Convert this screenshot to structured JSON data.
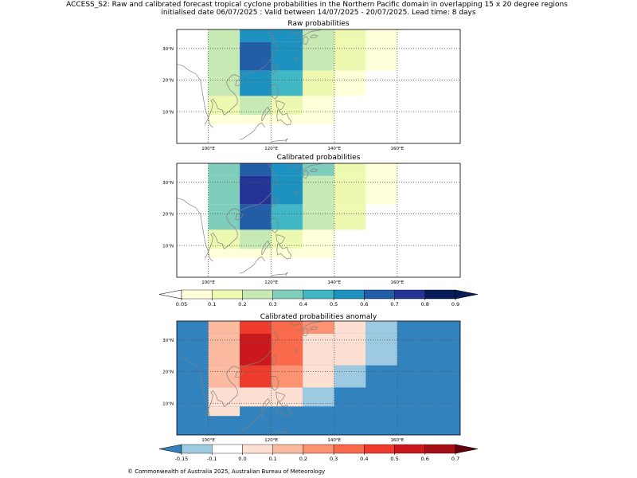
{
  "title_line1": "ACCESS_S2: Raw and calibrated forecast tropical cyclone probabilities in the Northern Pacific domain in overlapping 15 x 20 degree regions",
  "title_line2": "initialised date 06/07/2025 :  Valid between 14/07/2025 - 20/07/2025. Lead time: 8 days",
  "footer": "© Commonwealth of Australia 2025, Australian Bureau of Meteorology",
  "colors": {
    "coast": "#808080",
    "frame": "#000000",
    "grid": "#555555"
  },
  "chart_data": [
    {
      "type": "heatmap",
      "title": "Raw probabilities",
      "xlim": [
        90,
        180
      ],
      "ylim": [
        0,
        36
      ],
      "xticks": [
        {
          "value": 100,
          "label": "100°E"
        },
        {
          "value": 120,
          "label": "120°E"
        },
        {
          "value": 140,
          "label": "140°E"
        },
        {
          "value": 160,
          "label": "160°E"
        }
      ],
      "yticks": [
        {
          "value": 10,
          "label": "10°N"
        },
        {
          "value": 20,
          "label": "20°N"
        },
        {
          "value": 30,
          "label": "30°N"
        }
      ],
      "grid": true,
      "cells": [
        {
          "lon": [
            100,
            110
          ],
          "lat": [
            32,
            36
          ],
          "value": 0.25
        },
        {
          "lon": [
            110,
            120
          ],
          "lat": [
            32,
            36
          ],
          "value": 0.55
        },
        {
          "lon": [
            120,
            130
          ],
          "lat": [
            32,
            36
          ],
          "value": 0.55
        },
        {
          "lon": [
            130,
            140
          ],
          "lat": [
            32,
            36
          ],
          "value": 0.25
        },
        {
          "lon": [
            140,
            150
          ],
          "lat": [
            32,
            36
          ],
          "value": 0.15
        },
        {
          "lon": [
            150,
            160
          ],
          "lat": [
            32,
            36
          ],
          "value": 0.08
        },
        {
          "lon": [
            100,
            110
          ],
          "lat": [
            23,
            32
          ],
          "value": 0.25
        },
        {
          "lon": [
            110,
            120
          ],
          "lat": [
            23,
            32
          ],
          "value": 0.65
        },
        {
          "lon": [
            120,
            130
          ],
          "lat": [
            23,
            32
          ],
          "value": 0.55
        },
        {
          "lon": [
            130,
            140
          ],
          "lat": [
            23,
            32
          ],
          "value": 0.25
        },
        {
          "lon": [
            140,
            150
          ],
          "lat": [
            23,
            32
          ],
          "value": 0.15
        },
        {
          "lon": [
            150,
            160
          ],
          "lat": [
            23,
            32
          ],
          "value": 0.08
        },
        {
          "lon": [
            100,
            110
          ],
          "lat": [
            15,
            23
          ],
          "value": 0.25
        },
        {
          "lon": [
            110,
            120
          ],
          "lat": [
            15,
            23
          ],
          "value": 0.55
        },
        {
          "lon": [
            120,
            130
          ],
          "lat": [
            15,
            23
          ],
          "value": 0.45
        },
        {
          "lon": [
            130,
            140
          ],
          "lat": [
            15,
            23
          ],
          "value": 0.15
        },
        {
          "lon": [
            140,
            150
          ],
          "lat": [
            15,
            23
          ],
          "value": 0.08
        },
        {
          "lon": [
            100,
            110
          ],
          "lat": [
            9,
            15
          ],
          "value": 0.15
        },
        {
          "lon": [
            110,
            120
          ],
          "lat": [
            9,
            15
          ],
          "value": 0.25
        },
        {
          "lon": [
            120,
            130
          ],
          "lat": [
            9,
            15
          ],
          "value": 0.15
        },
        {
          "lon": [
            130,
            140
          ],
          "lat": [
            9,
            15
          ],
          "value": 0.08
        },
        {
          "lon": [
            100,
            110
          ],
          "lat": [
            6,
            9
          ],
          "value": 0.08
        },
        {
          "lon": [
            110,
            120
          ],
          "lat": [
            6,
            9
          ],
          "value": 0.08
        },
        {
          "lon": [
            120,
            130
          ],
          "lat": [
            6,
            9
          ],
          "value": 0.08
        },
        {
          "lon": [
            130,
            140
          ],
          "lat": [
            6,
            9
          ],
          "value": 0.08
        }
      ]
    },
    {
      "type": "heatmap",
      "title": "Calibrated probabilities",
      "xlim": [
        90,
        180
      ],
      "ylim": [
        0,
        36
      ],
      "xticks": [
        {
          "value": 100,
          "label": "100°E"
        },
        {
          "value": 120,
          "label": "120°E"
        },
        {
          "value": 140,
          "label": "140°E"
        },
        {
          "value": 160,
          "label": "160°E"
        }
      ],
      "yticks": [
        {
          "value": 10,
          "label": "10°N"
        },
        {
          "value": 20,
          "label": "20°N"
        },
        {
          "value": 30,
          "label": "30°N"
        }
      ],
      "grid": true,
      "cells": [
        {
          "lon": [
            100,
            110
          ],
          "lat": [
            32,
            36
          ],
          "value": 0.35
        },
        {
          "lon": [
            110,
            120
          ],
          "lat": [
            32,
            36
          ],
          "value": 0.65
        },
        {
          "lon": [
            120,
            130
          ],
          "lat": [
            32,
            36
          ],
          "value": 0.55
        },
        {
          "lon": [
            130,
            140
          ],
          "lat": [
            32,
            36
          ],
          "value": 0.35
        },
        {
          "lon": [
            140,
            150
          ],
          "lat": [
            32,
            36
          ],
          "value": 0.15
        },
        {
          "lon": [
            150,
            160
          ],
          "lat": [
            32,
            36
          ],
          "value": 0.08
        },
        {
          "lon": [
            100,
            110
          ],
          "lat": [
            23,
            32
          ],
          "value": 0.35
        },
        {
          "lon": [
            110,
            120
          ],
          "lat": [
            23,
            32
          ],
          "value": 0.75
        },
        {
          "lon": [
            120,
            130
          ],
          "lat": [
            23,
            32
          ],
          "value": 0.55
        },
        {
          "lon": [
            130,
            140
          ],
          "lat": [
            23,
            32
          ],
          "value": 0.25
        },
        {
          "lon": [
            140,
            150
          ],
          "lat": [
            23,
            32
          ],
          "value": 0.15
        },
        {
          "lon": [
            150,
            160
          ],
          "lat": [
            23,
            32
          ],
          "value": 0.08
        },
        {
          "lon": [
            100,
            110
          ],
          "lat": [
            15,
            23
          ],
          "value": 0.35
        },
        {
          "lon": [
            110,
            120
          ],
          "lat": [
            15,
            23
          ],
          "value": 0.65
        },
        {
          "lon": [
            120,
            130
          ],
          "lat": [
            15,
            23
          ],
          "value": 0.45
        },
        {
          "lon": [
            130,
            140
          ],
          "lat": [
            15,
            23
          ],
          "value": 0.25
        },
        {
          "lon": [
            140,
            150
          ],
          "lat": [
            15,
            23
          ],
          "value": 0.15
        },
        {
          "lon": [
            100,
            110
          ],
          "lat": [
            9,
            15
          ],
          "value": 0.15
        },
        {
          "lon": [
            110,
            120
          ],
          "lat": [
            9,
            15
          ],
          "value": 0.25
        },
        {
          "lon": [
            120,
            130
          ],
          "lat": [
            9,
            15
          ],
          "value": 0.15
        },
        {
          "lon": [
            130,
            140
          ],
          "lat": [
            9,
            15
          ],
          "value": 0.08
        },
        {
          "lon": [
            100,
            110
          ],
          "lat": [
            6,
            9
          ],
          "value": 0.08
        },
        {
          "lon": [
            110,
            120
          ],
          "lat": [
            6,
            9
          ],
          "value": 0.08
        },
        {
          "lon": [
            120,
            130
          ],
          "lat": [
            6,
            9
          ],
          "value": 0.08
        },
        {
          "lon": [
            130,
            140
          ],
          "lat": [
            6,
            9
          ],
          "value": 0.08
        }
      ]
    },
    {
      "type": "heatmap",
      "title": "Calibrated probabilities anomaly",
      "xlim": [
        90,
        180
      ],
      "ylim": [
        0,
        36
      ],
      "xticks": [
        {
          "value": 100,
          "label": "100°E"
        },
        {
          "value": 120,
          "label": "120°E"
        },
        {
          "value": 140,
          "label": "140°E"
        },
        {
          "value": 160,
          "label": "160°E"
        }
      ],
      "yticks": [
        {
          "value": 10,
          "label": "10°N"
        },
        {
          "value": 20,
          "label": "20°N"
        },
        {
          "value": 30,
          "label": "30°N"
        }
      ],
      "grid": true,
      "background_value": -0.2,
      "cells": [
        {
          "lon": [
            100,
            110
          ],
          "lat": [
            32,
            36
          ],
          "value": 0.15
        },
        {
          "lon": [
            110,
            120
          ],
          "lat": [
            32,
            36
          ],
          "value": 0.45
        },
        {
          "lon": [
            120,
            130
          ],
          "lat": [
            32,
            36
          ],
          "value": 0.35
        },
        {
          "lon": [
            130,
            140
          ],
          "lat": [
            32,
            36
          ],
          "value": 0.25
        },
        {
          "lon": [
            140,
            150
          ],
          "lat": [
            32,
            36
          ],
          "value": 0.0
        },
        {
          "lon": [
            150,
            160
          ],
          "lat": [
            32,
            36
          ],
          "value": -0.12
        },
        {
          "lon": [
            100,
            110
          ],
          "lat": [
            29,
            32
          ],
          "value": 0.15
        },
        {
          "lon": [
            110,
            120
          ],
          "lat": [
            29,
            32
          ],
          "value": 0.55
        },
        {
          "lon": [
            120,
            130
          ],
          "lat": [
            29,
            32
          ],
          "value": 0.35
        },
        {
          "lon": [
            130,
            140
          ],
          "lat": [
            29,
            32
          ],
          "value": 0.05
        },
        {
          "lon": [
            140,
            150
          ],
          "lat": [
            29,
            32
          ],
          "value": 0.0
        },
        {
          "lon": [
            150,
            160
          ],
          "lat": [
            29,
            32
          ],
          "value": -0.12
        },
        {
          "lon": [
            100,
            110
          ],
          "lat": [
            22,
            29
          ],
          "value": 0.15
        },
        {
          "lon": [
            110,
            120
          ],
          "lat": [
            22,
            29
          ],
          "value": 0.55
        },
        {
          "lon": [
            120,
            130
          ],
          "lat": [
            22,
            29
          ],
          "value": 0.35
        },
        {
          "lon": [
            130,
            140
          ],
          "lat": [
            22,
            29
          ],
          "value": 0.05
        },
        {
          "lon": [
            140,
            150
          ],
          "lat": [
            22,
            29
          ],
          "value": 0.0
        },
        {
          "lon": [
            150,
            160
          ],
          "lat": [
            22,
            29
          ],
          "value": -0.12
        },
        {
          "lon": [
            100,
            110
          ],
          "lat": [
            15,
            22
          ],
          "value": 0.15
        },
        {
          "lon": [
            110,
            120
          ],
          "lat": [
            15,
            22
          ],
          "value": 0.45
        },
        {
          "lon": [
            120,
            130
          ],
          "lat": [
            15,
            22
          ],
          "value": 0.25
        },
        {
          "lon": [
            130,
            140
          ],
          "lat": [
            15,
            22
          ],
          "value": 0.0
        },
        {
          "lon": [
            140,
            150
          ],
          "lat": [
            15,
            22
          ],
          "value": -0.12
        },
        {
          "lon": [
            100,
            110
          ],
          "lat": [
            9,
            15
          ],
          "value": 0.0
        },
        {
          "lon": [
            110,
            120
          ],
          "lat": [
            9,
            15
          ],
          "value": 0.05
        },
        {
          "lon": [
            120,
            130
          ],
          "lat": [
            9,
            15
          ],
          "value": 0.05
        },
        {
          "lon": [
            130,
            140
          ],
          "lat": [
            9,
            15
          ],
          "value": -0.12
        },
        {
          "lon": [
            100,
            110
          ],
          "lat": [
            6,
            9
          ],
          "value": 0.0
        }
      ]
    }
  ],
  "colorbars": [
    {
      "ticks": [
        "0.05",
        "0.1",
        "0.2",
        "0.3",
        "0.4",
        "0.5",
        "0.6",
        "0.7",
        "0.8",
        "0.9"
      ],
      "under_color": "#ffffff",
      "over_color": "#081d58",
      "bin_colors": [
        "#ffffd9",
        "#edf8b1",
        "#c7e9b4",
        "#7fcdbb",
        "#41b6c4",
        "#1d91c0",
        "#225ea8",
        "#253494",
        "#081d58"
      ]
    },
    {
      "ticks": [
        "-0.15",
        "-0.1",
        "0.0",
        "0.1",
        "0.2",
        "0.3",
        "0.4",
        "0.5",
        "0.6",
        "0.7"
      ],
      "under_color": "#3182bd",
      "over_color": "#67000d",
      "bin_colors": [
        "#9ecae1",
        "#ffffff",
        "#fee0d2",
        "#fcbba1",
        "#fc9272",
        "#fb6a4a",
        "#ef3b2c",
        "#cb181d",
        "#a50f15"
      ]
    }
  ]
}
